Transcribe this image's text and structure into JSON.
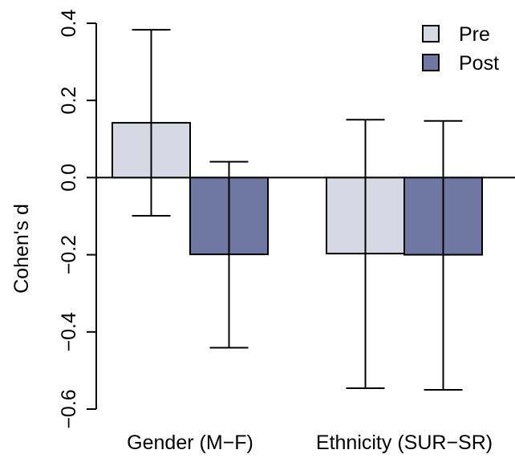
{
  "chart_data": {
    "type": "bar",
    "title": "",
    "xlabel": "",
    "ylabel": "Cohen's d",
    "ylim": [
      -0.6,
      0.4
    ],
    "yticks": [
      "-0.6",
      "-0.4",
      "-0.2",
      "0.0",
      "0.2",
      "0.4"
    ],
    "categories": [
      "Gender (M−F)",
      "Ethnicity (SUR−SR)"
    ],
    "series": [
      {
        "name": "Pre",
        "color": "#d6d9e3",
        "values": [
          0.142,
          -0.197
        ],
        "error_low": [
          -0.099,
          -0.546
        ],
        "error_high": [
          0.383,
          0.15
        ]
      },
      {
        "name": "Post",
        "color": "#6e78a3",
        "values": [
          -0.199,
          -0.2
        ],
        "error_low": [
          -0.441,
          -0.55
        ],
        "error_high": [
          0.041,
          0.147
        ]
      }
    ],
    "legend_position": "top-right",
    "grid": false
  }
}
